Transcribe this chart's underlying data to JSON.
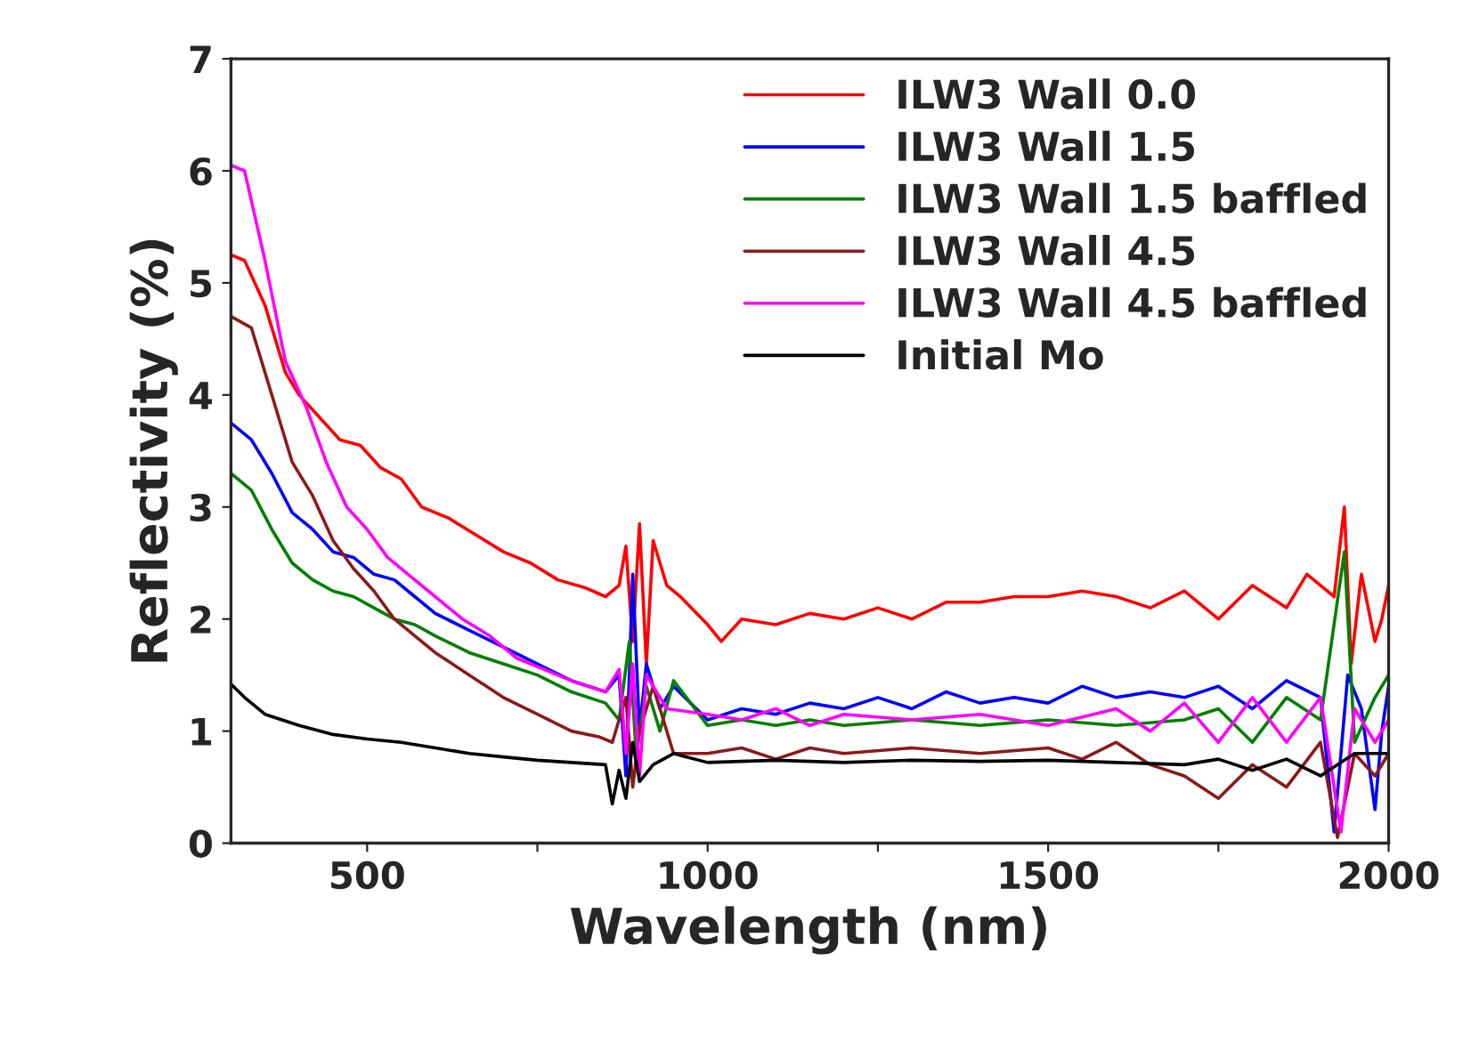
{
  "chart_data": {
    "type": "line",
    "xlabel": "Wavelength (nm)",
    "ylabel": "Reflectivity (%)",
    "xlim": [
      300,
      2000
    ],
    "ylim": [
      0,
      7
    ],
    "xticks": [
      500,
      {
        "value": 750,
        "label": null
      },
      1000,
      {
        "value": 1250,
        "label": null
      },
      1500,
      {
        "value": 1750,
        "label": null
      },
      2000
    ],
    "yticks": [
      0,
      1,
      2,
      3,
      4,
      5,
      6,
      7
    ],
    "legend": "top right",
    "grid": false,
    "marker": "none",
    "line_style": "solid",
    "series": [
      {
        "name": "ILW3 Wall 0.0",
        "color": "#ff0000",
        "x": [
          300,
          320,
          350,
          380,
          400,
          430,
          460,
          490,
          520,
          550,
          580,
          620,
          660,
          700,
          740,
          780,
          820,
          850,
          870,
          880,
          890,
          900,
          910,
          920,
          940,
          960,
          1000,
          1020,
          1050,
          1100,
          1150,
          1200,
          1250,
          1300,
          1350,
          1400,
          1450,
          1500,
          1550,
          1600,
          1650,
          1700,
          1750,
          1800,
          1850,
          1880,
          1900,
          1920,
          1935,
          1945,
          1960,
          1980,
          1990,
          2000
        ],
        "values": [
          5.25,
          5.2,
          4.8,
          4.2,
          4.0,
          3.8,
          3.6,
          3.55,
          3.35,
          3.25,
          3.0,
          2.9,
          2.75,
          2.6,
          2.5,
          2.35,
          2.28,
          2.2,
          2.3,
          2.65,
          1.8,
          2.85,
          1.6,
          2.7,
          2.3,
          2.2,
          1.95,
          1.8,
          2.0,
          1.95,
          2.05,
          2.0,
          2.1,
          2.0,
          2.15,
          2.15,
          2.2,
          2.2,
          2.25,
          2.2,
          2.1,
          2.25,
          2.0,
          2.3,
          2.1,
          2.4,
          2.3,
          2.2,
          3.0,
          1.6,
          2.4,
          1.8,
          2.0,
          2.3
        ]
      },
      {
        "name": "ILW3 Wall 1.5",
        "color": "#0000ff",
        "x": [
          300,
          330,
          360,
          390,
          420,
          450,
          480,
          510,
          540,
          570,
          600,
          650,
          700,
          750,
          800,
          850,
          870,
          880,
          890,
          900,
          910,
          930,
          950,
          1000,
          1050,
          1100,
          1150,
          1200,
          1250,
          1300,
          1350,
          1400,
          1450,
          1500,
          1550,
          1600,
          1650,
          1700,
          1750,
          1800,
          1850,
          1900,
          1920,
          1940,
          1960,
          1980,
          1990,
          2000
        ],
        "values": [
          3.75,
          3.6,
          3.3,
          2.95,
          2.8,
          2.6,
          2.55,
          2.4,
          2.35,
          2.2,
          2.05,
          1.9,
          1.75,
          1.6,
          1.45,
          1.35,
          1.5,
          0.6,
          2.4,
          1.0,
          1.6,
          1.2,
          1.4,
          1.1,
          1.2,
          1.15,
          1.25,
          1.2,
          1.3,
          1.2,
          1.35,
          1.25,
          1.3,
          1.25,
          1.4,
          1.3,
          1.35,
          1.3,
          1.4,
          1.2,
          1.45,
          1.3,
          0.1,
          1.5,
          1.2,
          0.3,
          1.0,
          1.4
        ]
      },
      {
        "name": "ILW3 Wall 1.5 baffled",
        "color": "#008000",
        "x": [
          300,
          330,
          360,
          390,
          420,
          450,
          480,
          510,
          540,
          570,
          600,
          650,
          700,
          750,
          800,
          850,
          870,
          885,
          895,
          910,
          930,
          950,
          1000,
          1050,
          1100,
          1150,
          1200,
          1300,
          1400,
          1500,
          1600,
          1700,
          1750,
          1800,
          1850,
          1900,
          1935,
          1950,
          1980,
          2000
        ],
        "values": [
          3.3,
          3.15,
          2.8,
          2.5,
          2.35,
          2.25,
          2.2,
          2.1,
          2.0,
          1.95,
          1.85,
          1.7,
          1.6,
          1.5,
          1.35,
          1.25,
          1.1,
          1.8,
          0.8,
          1.4,
          1.0,
          1.45,
          1.05,
          1.1,
          1.05,
          1.1,
          1.05,
          1.1,
          1.05,
          1.1,
          1.05,
          1.1,
          1.2,
          0.9,
          1.3,
          1.1,
          2.6,
          0.9,
          1.3,
          1.5
        ]
      },
      {
        "name": "ILW3 Wall 4.5",
        "color": "#8b1a1a",
        "x": [
          300,
          330,
          360,
          390,
          420,
          450,
          480,
          510,
          540,
          570,
          600,
          650,
          700,
          750,
          800,
          840,
          860,
          880,
          890,
          900,
          920,
          950,
          1000,
          1050,
          1100,
          1150,
          1200,
          1300,
          1400,
          1500,
          1550,
          1600,
          1650,
          1700,
          1750,
          1800,
          1850,
          1900,
          1925,
          1950,
          1980,
          2000
        ],
        "values": [
          4.7,
          4.6,
          4.0,
          3.4,
          3.1,
          2.7,
          2.45,
          2.25,
          2.0,
          1.85,
          1.7,
          1.5,
          1.3,
          1.15,
          1.0,
          0.95,
          0.9,
          1.3,
          0.5,
          1.0,
          1.4,
          0.8,
          0.8,
          0.85,
          0.75,
          0.85,
          0.8,
          0.85,
          0.8,
          0.85,
          0.75,
          0.9,
          0.7,
          0.6,
          0.4,
          0.7,
          0.5,
          0.9,
          0.05,
          0.8,
          0.6,
          0.8
        ]
      },
      {
        "name": "ILW3 Wall 4.5 baffled",
        "color": "#ff00ff",
        "x": [
          300,
          320,
          350,
          380,
          410,
          440,
          470,
          500,
          530,
          560,
          600,
          640,
          680,
          720,
          760,
          800,
          850,
          870,
          880,
          890,
          900,
          910,
          940,
          1000,
          1050,
          1100,
          1150,
          1200,
          1300,
          1400,
          1500,
          1600,
          1650,
          1700,
          1750,
          1800,
          1850,
          1900,
          1930,
          1950,
          1980,
          2000
        ],
        "values": [
          6.05,
          6.0,
          5.2,
          4.3,
          3.9,
          3.4,
          3.0,
          2.8,
          2.55,
          2.4,
          2.2,
          2.0,
          1.85,
          1.65,
          1.55,
          1.45,
          1.35,
          1.55,
          0.8,
          1.6,
          0.6,
          1.5,
          1.2,
          1.15,
          1.1,
          1.2,
          1.05,
          1.15,
          1.1,
          1.15,
          1.05,
          1.2,
          1.0,
          1.25,
          0.9,
          1.3,
          0.9,
          1.3,
          0.1,
          1.2,
          0.9,
          1.1
        ]
      },
      {
        "name": "Initial Mo",
        "color": "#000000",
        "x": [
          300,
          320,
          350,
          400,
          450,
          500,
          550,
          600,
          650,
          700,
          750,
          800,
          850,
          860,
          870,
          880,
          890,
          900,
          920,
          950,
          1000,
          1100,
          1200,
          1300,
          1400,
          1500,
          1600,
          1700,
          1750,
          1800,
          1850,
          1900,
          1950,
          2000
        ],
        "values": [
          1.42,
          1.3,
          1.15,
          1.05,
          0.97,
          0.93,
          0.9,
          0.85,
          0.8,
          0.77,
          0.74,
          0.72,
          0.7,
          0.35,
          0.65,
          0.4,
          0.9,
          0.55,
          0.7,
          0.8,
          0.72,
          0.74,
          0.72,
          0.74,
          0.73,
          0.74,
          0.72,
          0.7,
          0.75,
          0.65,
          0.75,
          0.6,
          0.8,
          0.8
        ]
      }
    ]
  }
}
